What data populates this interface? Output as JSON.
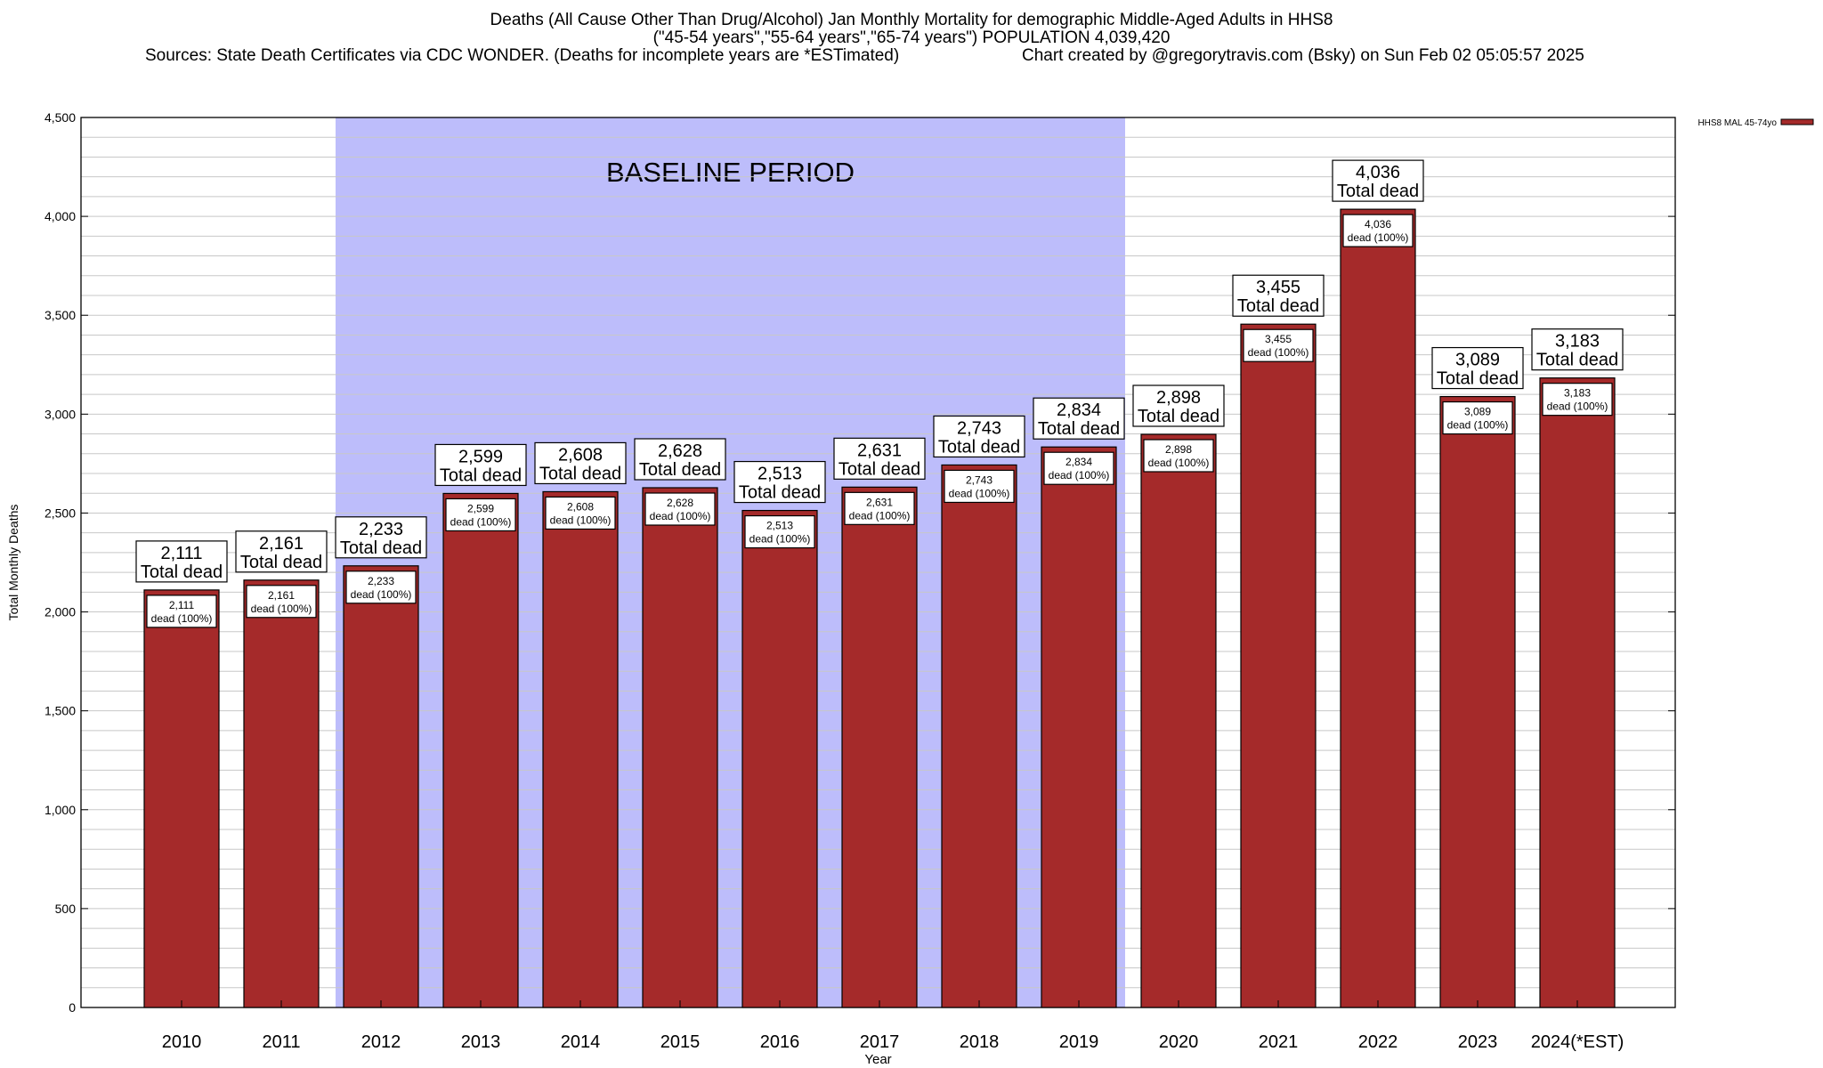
{
  "header": {
    "line1": "Deaths (All Cause Other Than Drug/Alcohol) Jan Monthly Mortality for demographic Middle-Aged Adults in HHS8",
    "line2": "(\"45-54 years\",\"55-64 years\",\"65-74 years\") POPULATION 4,039,420",
    "line3a": "Sources: State Death Certificates via CDC WONDER. (Deaths for incomplete years are *ESTimated)",
    "line3b": "Chart created by @gregorytravis.com (Bsky) on Sun Feb 02 05:05:57 2025"
  },
  "chart_data": {
    "type": "bar",
    "title": "Deaths (All Cause Other Than Drug/Alcohol) Jan Monthly Mortality for demographic Middle-Aged Adults in HHS8",
    "xlabel": "Year",
    "ylabel": "Total Monthly Deaths",
    "ylim": [
      0,
      4500
    ],
    "yticks": [
      0,
      500,
      1000,
      1500,
      2000,
      2500,
      3000,
      3500,
      4000,
      4500
    ],
    "ytick_labels": [
      "0",
      "500",
      "1,000",
      "1,500",
      "2,000",
      "2,500",
      "3,000",
      "3,500",
      "4,000",
      "4,500"
    ],
    "categories": [
      "2010",
      "2011",
      "2012",
      "2013",
      "2014",
      "2015",
      "2016",
      "2017",
      "2018",
      "2019",
      "2020",
      "2021",
      "2022",
      "2023",
      "2024(*EST)"
    ],
    "series": [
      {
        "name": "HHS8 MAL 45-74yo",
        "color": "#a52a2a",
        "values": [
          2111,
          2161,
          2233,
          2599,
          2608,
          2628,
          2513,
          2631,
          2743,
          2834,
          2898,
          3455,
          4036,
          3089,
          3183
        ]
      }
    ],
    "value_labels": [
      "2,111",
      "2,161",
      "2,233",
      "2,599",
      "2,608",
      "2,628",
      "2,513",
      "2,631",
      "2,743",
      "2,834",
      "2,898",
      "3,455",
      "4,036",
      "3,089",
      "3,183"
    ],
    "total_suffix": "Total dead",
    "inner_suffix": "dead (100%)",
    "annotation": {
      "text": "BASELINE PERIOD",
      "from": "2012",
      "to": "2019",
      "color": "#bdbdfb"
    },
    "legend": "top-right",
    "grid": true
  }
}
